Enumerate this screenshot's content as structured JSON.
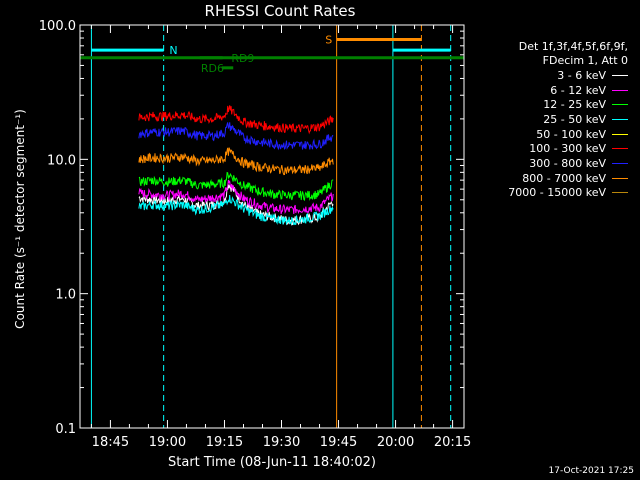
{
  "chart_data": {
    "type": "line",
    "title": "RHESSI Count Rates",
    "xlabel": "Start Time (08-Jun-11 18:40:02)",
    "ylabel": "Count Rate (s⁻¹ detector segment⁻¹)",
    "ylog": true,
    "ylim": [
      0.1,
      100.0
    ],
    "ytick_labels": [
      "0.1",
      "1.0",
      "10.0",
      "100.0"
    ],
    "ytick_values": [
      0.1,
      1.0,
      10.0,
      100.0
    ],
    "xlim_min": [
      -3,
      98
    ],
    "xtick_labels": [
      "18:45",
      "19:00",
      "19:15",
      "19:30",
      "19:45",
      "20:00",
      "20:15"
    ],
    "xtick_min": [
      5,
      20,
      35,
      50,
      65,
      80,
      95
    ],
    "series": [
      {
        "name": "3 - 6 keV",
        "color": "#ffffff",
        "x": [
          12.5,
          16,
          20,
          24,
          28,
          32,
          35,
          36,
          40,
          44,
          48,
          52,
          56,
          60,
          63.6
        ],
        "y": [
          5.2,
          5.0,
          4.9,
          5.1,
          4.5,
          4.6,
          4.9,
          6.6,
          4.6,
          3.9,
          3.7,
          3.5,
          3.6,
          3.7,
          4.9
        ]
      },
      {
        "name": "6 - 12 keV",
        "color": "#ff00ff",
        "x": [
          12.5,
          16,
          20,
          24,
          28,
          32,
          35,
          36,
          40,
          44,
          48,
          52,
          56,
          60,
          63.6
        ],
        "y": [
          5.6,
          5.5,
          5.4,
          5.6,
          5.0,
          5.2,
          5.4,
          6.6,
          5.1,
          4.6,
          4.3,
          4.2,
          4.3,
          4.4,
          5.4
        ]
      },
      {
        "name": "12 - 25 keV",
        "color": "#00ff00",
        "x": [
          12.5,
          16,
          20,
          24,
          28,
          32,
          35,
          36,
          40,
          44,
          48,
          52,
          56,
          60,
          63.6
        ],
        "y": [
          6.8,
          7.0,
          6.8,
          7.0,
          6.4,
          6.5,
          6.7,
          7.8,
          6.4,
          5.8,
          5.5,
          5.4,
          5.4,
          5.5,
          6.8
        ]
      },
      {
        "name": "25 - 50 keV",
        "color": "#00ffff",
        "x": [
          12.5,
          16,
          20,
          24,
          28,
          32,
          35,
          36,
          40,
          44,
          48,
          52,
          56,
          60,
          63.6
        ],
        "y": [
          4.4,
          4.6,
          4.5,
          4.6,
          4.2,
          4.4,
          4.6,
          5.2,
          4.3,
          3.8,
          3.6,
          3.5,
          3.6,
          3.8,
          4.4
        ]
      },
      {
        "name": "50 - 100 keV",
        "color": "#ffff00",
        "x": [],
        "y": []
      },
      {
        "name": "100 - 300 keV",
        "color": "#ff0000",
        "x": [
          12.5,
          16,
          20,
          24,
          28,
          32,
          35,
          36,
          40,
          44,
          48,
          52,
          56,
          60,
          63.6
        ],
        "y": [
          20.5,
          21.0,
          21.0,
          21.5,
          20.0,
          20.0,
          21.0,
          24.0,
          19.0,
          18.0,
          17.5,
          17.0,
          17.0,
          17.5,
          20.0
        ]
      },
      {
        "name": "300 - 800 keV",
        "color": "#2020ff",
        "x": [
          12.5,
          16,
          20,
          24,
          28,
          32,
          35,
          36,
          40,
          44,
          48,
          52,
          56,
          60,
          63.6
        ],
        "y": [
          15.5,
          16.0,
          16.0,
          16.3,
          15.0,
          15.0,
          15.8,
          18.0,
          14.5,
          13.5,
          13.0,
          12.8,
          12.8,
          13.0,
          15.0
        ]
      },
      {
        "name": "800 - 7000 keV",
        "color": "#ff8c00",
        "x": [
          12.5,
          16,
          20,
          24,
          28,
          32,
          35,
          36,
          40,
          44,
          48,
          52,
          56,
          60,
          63.6
        ],
        "y": [
          10.0,
          10.3,
          10.2,
          10.5,
          9.7,
          9.8,
          10.2,
          11.5,
          9.4,
          8.8,
          8.5,
          8.3,
          8.4,
          8.6,
          9.9
        ]
      },
      {
        "name": "7000 - 15000 keV",
        "color": "#b8860b",
        "x": [],
        "y": []
      }
    ],
    "v_lines": [
      {
        "x_min": 0,
        "color": "#00ffff",
        "dash": false
      },
      {
        "x_min": 19,
        "color": "#00ffff",
        "dash": true
      },
      {
        "x_min": 64.5,
        "color": "#ff8c00",
        "dash": false
      },
      {
        "x_min": 79.3,
        "color": "#00ffff",
        "dash": false
      },
      {
        "x_min": 86.8,
        "color": "#ff8c00",
        "dash": true
      },
      {
        "x_min": 94.5,
        "color": "#00ffff",
        "dash": true
      }
    ],
    "flag_bars": [
      {
        "label": "N",
        "color": "#00ffff",
        "x_start": 0,
        "x_end": 19,
        "y": 65,
        "label_x": 20.5
      },
      {
        "label": "N",
        "color": "#00ffff",
        "x_start": 79.3,
        "x_end": 94.5,
        "y": 65,
        "label_x": null
      },
      {
        "label": "S",
        "color": "#ff8c00",
        "x_start": 64.5,
        "x_end": 86.8,
        "y": 78,
        "label_x": 61.5
      },
      {
        "label": "",
        "color": "#008000",
        "x_start": -3,
        "x_end": 98,
        "y": 57,
        "label_x": null
      },
      {
        "label": "RD6",
        "color": "#008000",
        "x_start": 34.3,
        "x_end": 37.3,
        "y": 48,
        "label_x": 28.8
      },
      {
        "label": "RD9",
        "color": "#008000",
        "x_start": 28.5,
        "x_end": 34.5,
        "y": 57,
        "label_x": 36.8
      }
    ]
  },
  "legend": {
    "header_line1": "Det 1f,3f,4f,5f,6f,9f,",
    "header_line2": "FDecim 1, Att 0"
  },
  "timestamp": "17-Oct-2021 17:25"
}
